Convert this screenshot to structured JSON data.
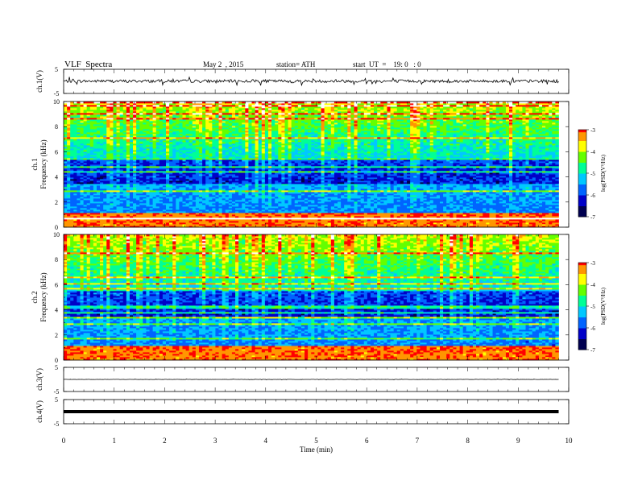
{
  "header": {
    "title": "VLF  Spectra",
    "date": "May 2  , 2015",
    "station": "station= ATH",
    "start": "start  UT  =    19: 0   : 0"
  },
  "chart_data": {
    "type": "heatmap",
    "xlabel": "Time  (min)",
    "xlim": [
      0,
      10
    ],
    "xticks": [
      "0",
      "1",
      "2",
      "3",
      "4",
      "5",
      "6",
      "7",
      "8",
      "9",
      "10"
    ],
    "panels": [
      {
        "id": "ch1",
        "type": "line",
        "ylabel": "ch.1(V)",
        "ylim": [
          -5,
          5
        ],
        "yticks": [
          "5",
          "-5"
        ],
        "level": 0.1,
        "noise": 0.12
      },
      {
        "id": "spec1",
        "type": "heatmap",
        "ylabel": "ch.1\nFrequency  (kHz)",
        "ylim": [
          0,
          10
        ],
        "yticks": [
          "0",
          "2",
          "4",
          "6",
          "8",
          "10"
        ],
        "colorbar": {
          "label": "log(PSD(V²/Hz)",
          "range": [
            -7,
            -3
          ],
          "ticks": [
            "-3",
            "-4",
            "-5",
            "-6",
            "-7"
          ]
        }
      },
      {
        "id": "spec2",
        "type": "heatmap",
        "ylabel": "ch.2\nFrequency  (kHz)",
        "ylim": [
          0,
          10
        ],
        "yticks": [
          "0",
          "2",
          "4",
          "6",
          "8",
          "10"
        ],
        "colorbar": {
          "label": "log(PSD(V²/Hz)",
          "range": [
            -7,
            -3
          ],
          "ticks": [
            "-3",
            "-4",
            "-5",
            "-6",
            "-7"
          ]
        }
      },
      {
        "id": "ch3",
        "type": "line",
        "ylabel": "ch.3(V)",
        "ylim": [
          -5,
          5
        ],
        "yticks": [
          "5",
          "-5"
        ],
        "level": 0.0,
        "noise": 0.01
      },
      {
        "id": "ch4",
        "type": "line",
        "ylabel": "ch.4(V)",
        "ylim": [
          -5,
          5
        ],
        "yticks": [
          "5",
          "-5"
        ],
        "level": 0.0,
        "noise": 0.0,
        "thick": true
      }
    ],
    "data_end_min": 9.8,
    "grid": false,
    "colormap": [
      "#000050",
      "#0000c8",
      "#0064ff",
      "#00c8ff",
      "#00ff96",
      "#64ff00",
      "#ffff00",
      "#ff9600",
      "#ff0000",
      "#ffffff"
    ]
  }
}
